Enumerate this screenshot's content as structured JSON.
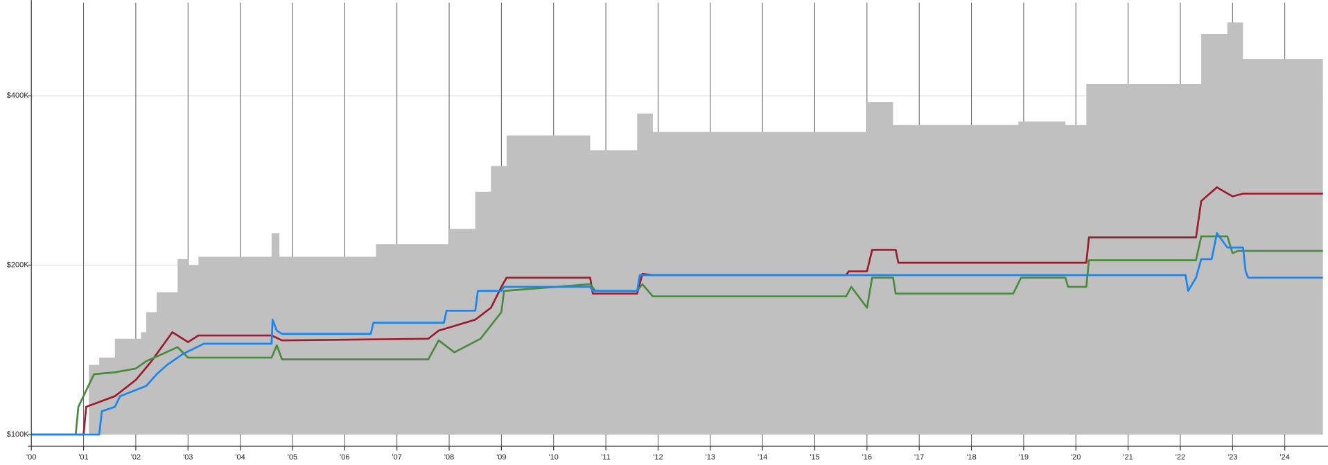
{
  "chart_data": {
    "type": "line",
    "log_y": true,
    "grid": true,
    "xlim": [
      2000,
      2024.73
    ],
    "ylim": [
      95300,
      585600
    ],
    "xticks": [
      {
        "value": 2000,
        "label": "'00"
      },
      {
        "value": 2001,
        "label": "'01"
      },
      {
        "value": 2002,
        "label": "'02"
      },
      {
        "value": 2003,
        "label": "'03"
      },
      {
        "value": 2004,
        "label": "'04"
      },
      {
        "value": 2005,
        "label": "'05"
      },
      {
        "value": 2006,
        "label": "'06"
      },
      {
        "value": 2007,
        "label": "'07"
      },
      {
        "value": 2008,
        "label": "'08"
      },
      {
        "value": 2009,
        "label": "'09"
      },
      {
        "value": 2010,
        "label": "'10"
      },
      {
        "value": 2011,
        "label": "'11"
      },
      {
        "value": 2012,
        "label": "'12"
      },
      {
        "value": 2013,
        "label": "'13"
      },
      {
        "value": 2014,
        "label": "'14"
      },
      {
        "value": 2015,
        "label": "'15"
      },
      {
        "value": 2016,
        "label": "'16"
      },
      {
        "value": 2017,
        "label": "'17"
      },
      {
        "value": 2018,
        "label": "'18"
      },
      {
        "value": 2019,
        "label": "'19"
      },
      {
        "value": 2020,
        "label": "'20"
      },
      {
        "value": 2021,
        "label": "'21"
      },
      {
        "value": 2022,
        "label": "'22"
      },
      {
        "value": 2023,
        "label": "'23"
      },
      {
        "value": 2024,
        "label": "'24"
      }
    ],
    "yticks": [
      {
        "value": 100000,
        "label": "$100K"
      },
      {
        "value": 200000,
        "label": "$200K"
      },
      {
        "value": 400000,
        "label": "$400K"
      }
    ],
    "series": [
      {
        "type": "area",
        "color": "#c0c0c0",
        "x": [
          2000,
          2000.97,
          2001.1,
          2001.3,
          2001.6,
          2002.1,
          2002.2,
          2002.4,
          2002.8,
          2003.0,
          2003.2,
          2004.55,
          2004.6,
          2004.75,
          2006.5,
          2006.6,
          2007.9,
          2008.0,
          2008.5,
          2008.8,
          2009.1,
          2010.7,
          2011.6,
          2011.9,
          2015.6,
          2016.0,
          2016.5,
          2018.9,
          2019.8,
          2020.2,
          2022.3,
          2022.4,
          2022.9,
          2023.2,
          2024.73
        ],
        "values": [
          100000,
          100000,
          133000,
          137000,
          148000,
          152000,
          165000,
          179000,
          205000,
          200000,
          207000,
          207000,
          228000,
          207000,
          207000,
          218000,
          218000,
          232000,
          270000,
          300000,
          340000,
          320000,
          372000,
          345000,
          345000,
          390000,
          355000,
          360000,
          355000,
          420000,
          420000,
          515000,
          540000,
          465000,
          465000
        ]
      },
      {
        "type": "line",
        "color": "#9b1c2c",
        "x": [
          2000,
          2001.0,
          2001.05,
          2001.6,
          2002.0,
          2002.3,
          2002.7,
          2003.0,
          2003.2,
          2004.6,
          2004.8,
          2007.6,
          2007.8,
          2008.5,
          2008.8,
          2009.0,
          2009.1,
          2010.7,
          2010.75,
          2011.6,
          2011.7,
          2011.9,
          2015.6,
          2015.65,
          2016.0,
          2016.1,
          2016.55,
          2016.6,
          2020.2,
          2020.25,
          2022.3,
          2022.4,
          2022.7,
          2023.0,
          2023.2,
          2024.73
        ],
        "values": [
          100000,
          100000,
          112000,
          117000,
          125000,
          135000,
          152000,
          146000,
          150000,
          150000,
          147000,
          148000,
          153000,
          160000,
          168000,
          183000,
          190000,
          190000,
          178000,
          178000,
          193000,
          192000,
          192000,
          195000,
          195000,
          213000,
          213000,
          202000,
          202000,
          224000,
          224000,
          260000,
          275000,
          265000,
          268000,
          268000
        ]
      },
      {
        "type": "line",
        "color": "#4a8a3c",
        "x": [
          2000,
          2000.85,
          2000.9,
          2001.2,
          2001.6,
          2002.0,
          2002.2,
          2002.8,
          2003.0,
          2004.6,
          2004.7,
          2004.8,
          2007.6,
          2007.8,
          2008.1,
          2008.6,
          2009.0,
          2009.05,
          2010.7,
          2010.8,
          2011.6,
          2011.7,
          2011.9,
          2015.6,
          2015.7,
          2016.0,
          2016.1,
          2016.5,
          2016.55,
          2018.8,
          2018.95,
          2019.8,
          2019.85,
          2020.2,
          2020.25,
          2022.3,
          2022.4,
          2022.9,
          2023.0,
          2023.1,
          2024.73
        ],
        "values": [
          100000,
          100000,
          112000,
          128000,
          129000,
          131000,
          135000,
          143000,
          137000,
          137000,
          144000,
          136000,
          136000,
          147000,
          140000,
          148000,
          165000,
          180000,
          185000,
          180000,
          180000,
          185000,
          176000,
          176000,
          183000,
          168000,
          190000,
          190000,
          178000,
          178000,
          190000,
          190000,
          183000,
          183000,
          204000,
          204000,
          225000,
          225000,
          210000,
          212000,
          212000
        ]
      },
      {
        "type": "line",
        "color": "#1a85f0",
        "x": [
          2000,
          2001.3,
          2001.35,
          2001.6,
          2001.7,
          2002.2,
          2002.4,
          2002.6,
          2002.9,
          2003.3,
          2004.6,
          2004.62,
          2004.7,
          2004.8,
          2006.5,
          2006.55,
          2007.9,
          2007.95,
          2008.5,
          2008.55,
          2009.0,
          2009.05,
          2010.7,
          2010.75,
          2011.6,
          2011.65,
          2022.1,
          2022.15,
          2022.3,
          2022.4,
          2022.6,
          2022.7,
          2022.9,
          2023.2,
          2023.25,
          2023.3,
          2024.73
        ],
        "values": [
          100000,
          100000,
          110000,
          112000,
          117000,
          122000,
          128000,
          133000,
          139000,
          145000,
          145000,
          160000,
          153000,
          151000,
          151000,
          158000,
          158000,
          166000,
          166000,
          180000,
          180000,
          183000,
          183000,
          180000,
          180000,
          192000,
          192000,
          180000,
          190000,
          205000,
          205000,
          228000,
          215000,
          215000,
          195000,
          190000,
          190000
        ]
      }
    ]
  }
}
